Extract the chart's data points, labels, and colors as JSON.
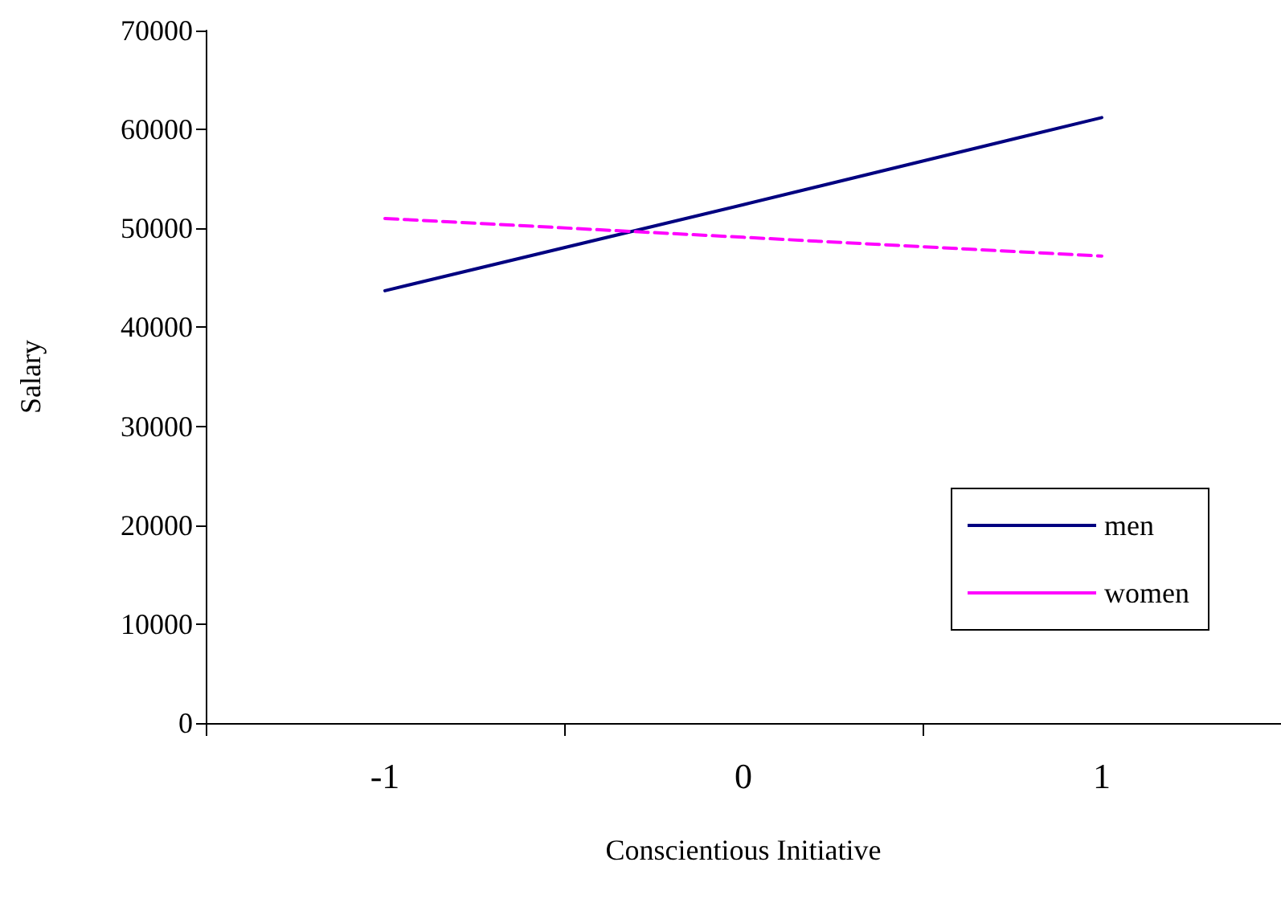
{
  "chart_data": {
    "type": "line",
    "xlabel": "Conscientious Initiative",
    "ylabel": "Salary",
    "categories": [
      "-1",
      "0",
      "1"
    ],
    "series": [
      {
        "name": "men",
        "color": "#000080",
        "values": [
          43700,
          52400,
          61200
        ],
        "line_style": "solid"
      },
      {
        "name": "women",
        "color": "#ff00ff",
        "values": [
          51000,
          49100,
          47200
        ],
        "line_style": "dashed"
      }
    ],
    "ylim": [
      0,
      70000
    ],
    "yticks": [
      0,
      10000,
      20000,
      30000,
      40000,
      50000,
      60000,
      70000
    ],
    "grid": false,
    "legend": "bottom right",
    "marker": "none"
  }
}
